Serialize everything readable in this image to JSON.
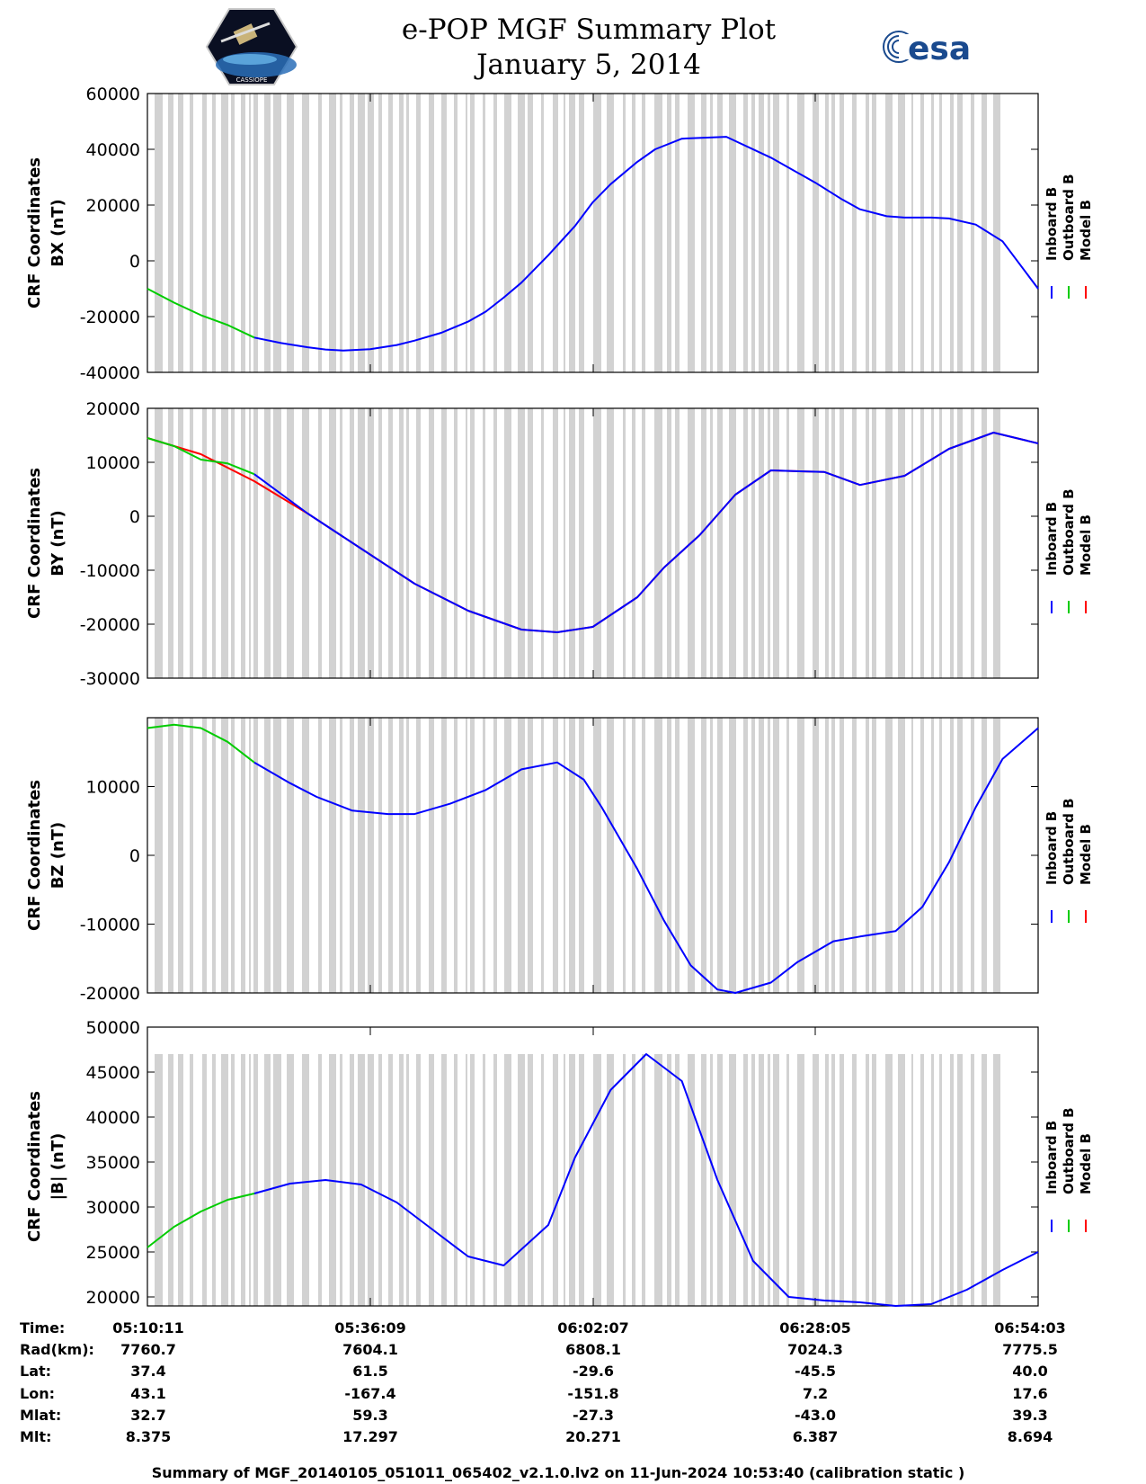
{
  "header": {
    "title_line1": "e-POP MGF Summary Plot",
    "title_line2": "January 5, 2014",
    "left_logo_text": "CASSIOPE",
    "right_logo_text": "esa"
  },
  "legend": {
    "entries": [
      "Inboard B",
      "Outboard B",
      "Model B"
    ],
    "colors": [
      "#0000ff",
      "#00cc00",
      "#ff0000"
    ]
  },
  "chart_data": [
    {
      "type": "line",
      "ylabel_line1": "CRF Coordinates",
      "ylabel_line2": "BX (nT)",
      "ylim": [
        -40000,
        60000
      ],
      "yticks": [
        -40000,
        -20000,
        0,
        20000,
        40000,
        60000
      ],
      "gap_top": 60000,
      "series": [
        {
          "name": "Inboard B",
          "color": "#0000ff",
          "x": [
            0.12,
            0.15,
            0.18,
            0.2,
            0.22,
            0.25,
            0.28,
            0.3,
            0.33,
            0.36,
            0.38,
            0.4,
            0.42,
            0.45,
            0.48,
            0.5,
            0.52,
            0.55,
            0.57,
            0.6,
            0.65,
            0.7,
            0.75,
            0.78,
            0.8,
            0.83,
            0.85,
            0.88,
            0.9,
            0.93,
            0.96,
            1.0
          ],
          "y": [
            -27500,
            -29500,
            -31000,
            -31800,
            -32200,
            -31700,
            -30200,
            -28600,
            -25800,
            -21800,
            -18200,
            -13200,
            -7800,
            2000,
            12500,
            21000,
            27500,
            35500,
            40000,
            43800,
            44500,
            37000,
            28000,
            22000,
            18500,
            16000,
            15500,
            15500,
            15200,
            13000,
            7000,
            -10000
          ]
        },
        {
          "name": "Outboard B",
          "color": "#00cc00",
          "x": [
            0.0,
            0.03,
            0.06,
            0.09,
            0.12
          ],
          "y": [
            -10000,
            -15000,
            -19500,
            -23000,
            -27500
          ]
        },
        {
          "name": "Model B",
          "color": "#ff0000",
          "x": [],
          "y": []
        }
      ]
    },
    {
      "type": "line",
      "ylabel_line1": "CRF Coordinates",
      "ylabel_line2": "BY (nT)",
      "ylim": [
        -30000,
        20000
      ],
      "yticks": [
        -30000,
        -20000,
        -10000,
        0,
        10000,
        20000
      ],
      "gap_top": 20000,
      "series": [
        {
          "name": "Model B",
          "color": "#ff0000",
          "x": [
            0.0,
            0.06,
            0.12,
            0.18,
            0.24,
            0.3,
            0.36,
            0.42,
            0.46,
            0.5,
            0.55,
            0.58,
            0.62,
            0.66,
            0.7,
            0.76,
            0.8,
            0.85,
            0.9,
            0.95,
            1.0
          ],
          "y": [
            14500,
            11500,
            6500,
            500,
            -6000,
            -12500,
            -17500,
            -21000,
            -21500,
            -20500,
            -15000,
            -9500,
            -3500,
            4000,
            8500,
            8200,
            5800,
            7500,
            12500,
            15500,
            13500
          ]
        },
        {
          "name": "Outboard B",
          "color": "#00cc00",
          "x": [
            0.0,
            0.03,
            0.06,
            0.09,
            0.12
          ],
          "y": [
            14500,
            13000,
            10500,
            9800,
            7800
          ]
        },
        {
          "name": "Inboard B",
          "color": "#0000ff",
          "x": [
            0.12,
            0.18,
            0.24,
            0.3,
            0.36,
            0.42,
            0.46,
            0.5,
            0.55,
            0.58,
            0.62,
            0.66,
            0.7,
            0.76,
            0.8,
            0.85,
            0.9,
            0.95,
            1.0
          ],
          "y": [
            7800,
            500,
            -6000,
            -12500,
            -17500,
            -21000,
            -21500,
            -20500,
            -15000,
            -9500,
            -3500,
            4000,
            8500,
            8200,
            5800,
            7500,
            12500,
            15500,
            13500
          ]
        }
      ]
    },
    {
      "type": "line",
      "ylabel_line1": "CRF Coordinates",
      "ylabel_line2": "BZ (nT)",
      "ylim": [
        -20000,
        20000
      ],
      "yticks": [
        -20000,
        -10000,
        0,
        10000
      ],
      "gap_top": 20000,
      "series": [
        {
          "name": "Inboard B",
          "color": "#0000ff",
          "x": [
            0.12,
            0.16,
            0.19,
            0.23,
            0.27,
            0.3,
            0.34,
            0.38,
            0.42,
            0.46,
            0.49,
            0.51,
            0.55,
            0.58,
            0.61,
            0.64,
            0.66,
            0.7,
            0.73,
            0.77,
            0.8,
            0.84,
            0.87,
            0.9,
            0.93,
            0.96,
            1.0
          ],
          "y": [
            13500,
            10500,
            8500,
            6500,
            6000,
            6000,
            7500,
            9500,
            12500,
            13500,
            11000,
            7000,
            -2000,
            -9500,
            -16000,
            -19500,
            -20000,
            -18500,
            -15500,
            -12500,
            -11800,
            -11000,
            -7500,
            -1000,
            7000,
            14000,
            18500
          ]
        },
        {
          "name": "Outboard B",
          "color": "#00cc00",
          "x": [
            0.0,
            0.03,
            0.06,
            0.09,
            0.12
          ],
          "y": [
            18500,
            19000,
            18500,
            16500,
            13500
          ]
        },
        {
          "name": "Model B",
          "color": "#ff0000",
          "x": [],
          "y": []
        }
      ]
    },
    {
      "type": "line",
      "ylabel_line1": "CRF Coordinates",
      "ylabel_line2": "|B| (nT)",
      "ylim": [
        19000,
        50000
      ],
      "yticks": [
        20000,
        25000,
        30000,
        35000,
        40000,
        45000,
        50000
      ],
      "gap_top": 47000,
      "series": [
        {
          "name": "Inboard B",
          "color": "#0000ff",
          "x": [
            0.12,
            0.16,
            0.2,
            0.24,
            0.28,
            0.32,
            0.36,
            0.4,
            0.45,
            0.48,
            0.52,
            0.56,
            0.6,
            0.64,
            0.68,
            0.72,
            0.76,
            0.8,
            0.84,
            0.88,
            0.92,
            0.96,
            1.0
          ],
          "y": [
            31500,
            32600,
            33000,
            32500,
            30500,
            27500,
            24500,
            23500,
            28000,
            35500,
            43000,
            47000,
            44000,
            33000,
            24000,
            20000,
            19600,
            19400,
            19000,
            19200,
            20800,
            23000,
            25000
          ]
        },
        {
          "name": "Outboard B",
          "color": "#00cc00",
          "x": [
            0.0,
            0.03,
            0.06,
            0.09,
            0.12
          ],
          "y": [
            25500,
            27800,
            29500,
            30800,
            31500
          ]
        },
        {
          "name": "Model B",
          "color": "#ff0000",
          "x": [],
          "y": []
        }
      ]
    }
  ],
  "info_table": {
    "row_labels": [
      "Time:",
      "Rad(km):",
      "Lat:",
      "Lon:",
      "Mlat:",
      "Mlt:"
    ],
    "columns": [
      [
        "05:10:11",
        "7760.7",
        "37.4",
        "43.1",
        "32.7",
        "8.375"
      ],
      [
        "05:36:09",
        "7604.1",
        "61.5",
        "-167.4",
        "59.3",
        "17.297"
      ],
      [
        "06:02:07",
        "6808.1",
        "-29.6",
        "-151.8",
        "-27.3",
        "20.271"
      ],
      [
        "06:28:05",
        "7024.3",
        "-45.5",
        "7.2",
        "-43.0",
        "6.387"
      ],
      [
        "06:54:03",
        "7775.5",
        "40.0",
        "17.6",
        "39.3",
        "8.694"
      ]
    ]
  },
  "footer": "Summary of MGF_20140105_051011_065402_v2.1.0.lv2 on 11-Jun-2024 10:53:40 (calibration static )"
}
